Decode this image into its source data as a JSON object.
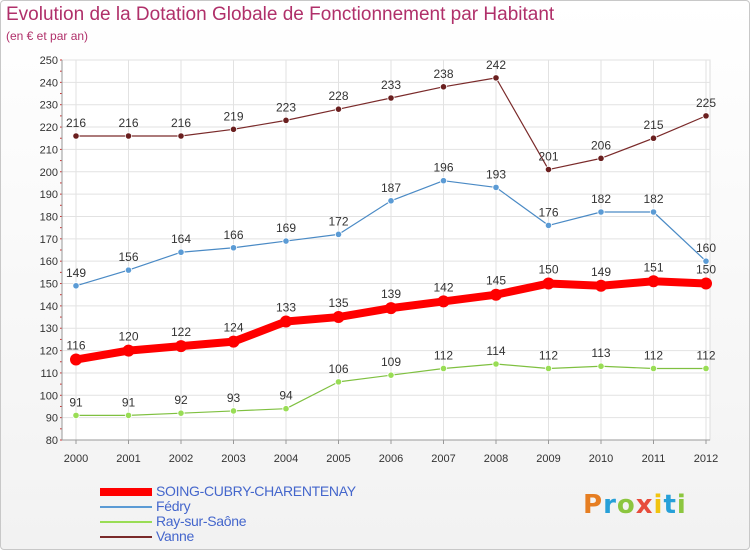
{
  "chart_data": {
    "type": "line",
    "title": "Evolution de la Dotation Globale de Fonctionnement par Habitant",
    "subtitle": "(en € et par an)",
    "x": [
      "2000",
      "2001",
      "2002",
      "2003",
      "2004",
      "2005",
      "2006",
      "2007",
      "2008",
      "2009",
      "2010",
      "2011",
      "2012"
    ],
    "ylim": [
      80,
      250
    ],
    "yticks": [
      80,
      90,
      100,
      110,
      120,
      130,
      140,
      150,
      160,
      170,
      180,
      190,
      200,
      210,
      220,
      230,
      240,
      250
    ],
    "grid": true,
    "legend_position": "bottom-left",
    "series": [
      {
        "name": "SOING-CUBRY-CHARENTENAY",
        "color": "#ff0000",
        "values": [
          116,
          120,
          122,
          124,
          133,
          135,
          139,
          142,
          145,
          150,
          149,
          151,
          150
        ]
      },
      {
        "name": "Fédry",
        "color": "#5b9bd5",
        "values": [
          149,
          156,
          164,
          166,
          169,
          172,
          187,
          196,
          193,
          176,
          182,
          182,
          160
        ]
      },
      {
        "name": "Ray-sur-Saône",
        "color": "#99dd55",
        "values": [
          91,
          91,
          92,
          93,
          94,
          106,
          109,
          112,
          114,
          112,
          113,
          112,
          112
        ]
      },
      {
        "name": "Vanne",
        "color": "#7a2a2a",
        "values": [
          216,
          216,
          216,
          219,
          223,
          228,
          233,
          238,
          242,
          201,
          206,
          215,
          225
        ]
      }
    ]
  },
  "logo": {
    "letters": [
      "P",
      "r",
      "o",
      "x",
      "i",
      "t",
      "i"
    ]
  }
}
